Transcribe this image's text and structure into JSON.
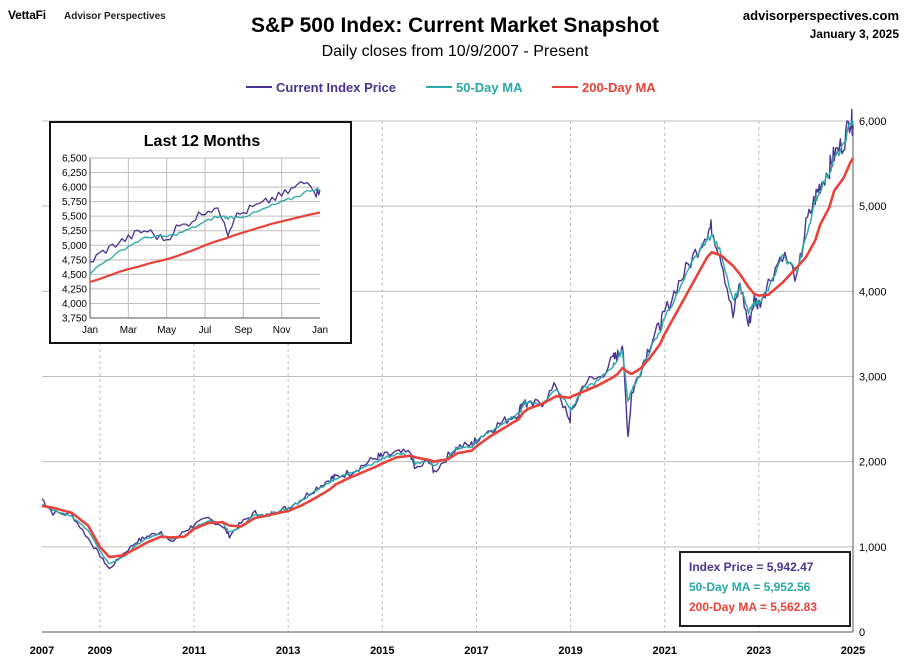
{
  "header": {
    "brand": "VettaFi",
    "brand_sub": "Advisor Perspectives",
    "title": "S&P 500 Index: Current Market Snapshot",
    "subtitle": "Daily closes from 10/9/2007 - Present",
    "site": "advisorperspectives.com",
    "date": "January 3, 2025"
  },
  "legend": [
    "Current Index Price",
    "50-Day MA",
    "200-Day MA"
  ],
  "colors": {
    "price": "#4b3391",
    "ma50": "#2aa7a7",
    "ma200": "#e8423a",
    "grid": "#bdbdbd"
  },
  "info": {
    "price_label": "Index Price =",
    "price_value": "5,942.47",
    "ma50_label": "50-Day MA =",
    "ma50_value": "5,952.56",
    "ma200_label": "200-Day  MA =",
    "ma200_value": "5,562.83"
  },
  "chart_data": [
    {
      "type": "line",
      "title": "S&P 500 Index: Current Market Snapshot",
      "subtitle": "Daily closes from 10/9/2007 - Present",
      "x_tick_labels": [
        "2007",
        "2009",
        "2011",
        "2013",
        "2015",
        "2017",
        "2019",
        "2021",
        "2023",
        "2025"
      ],
      "y_tick_labels": [
        "0",
        "1,000",
        "2,000",
        "3,000",
        "4,000",
        "5,000",
        "6,000"
      ],
      "xlim": [
        2007.77,
        2025.0
      ],
      "ylim": [
        0,
        6000
      ],
      "grid": true,
      "legend_position": "top-center",
      "x": [
        2007.77,
        2008.0,
        2008.4,
        2008.75,
        2009.0,
        2009.2,
        2009.5,
        2009.8,
        2010.0,
        2010.3,
        2010.5,
        2010.8,
        2011.0,
        2011.3,
        2011.6,
        2011.75,
        2012.0,
        2012.3,
        2012.5,
        2012.8,
        2013.0,
        2013.3,
        2013.6,
        2013.9,
        2014.0,
        2014.3,
        2014.6,
        2014.9,
        2015.0,
        2015.3,
        2015.6,
        2015.7,
        2016.0,
        2016.1,
        2016.4,
        2016.6,
        2016.9,
        2017.0,
        2017.3,
        2017.6,
        2017.9,
        2018.0,
        2018.1,
        2018.4,
        2018.7,
        2018.98,
        2019.0,
        2019.3,
        2019.6,
        2019.9,
        2020.0,
        2020.1,
        2020.22,
        2020.3,
        2020.5,
        2020.7,
        2020.9,
        2021.0,
        2021.3,
        2021.6,
        2021.9,
        2022.0,
        2022.2,
        2022.45,
        2022.6,
        2022.78,
        2022.9,
        2023.0,
        2023.2,
        2023.5,
        2023.82,
        2024.0,
        2024.2,
        2024.3,
        2024.5,
        2024.6,
        2024.8,
        2024.95,
        2025.0
      ],
      "series": [
        {
          "name": "Current Index Price",
          "values": [
            1565,
            1400,
            1380,
            1100,
            900,
            740,
            920,
            1070,
            1120,
            1180,
            1050,
            1180,
            1260,
            1330,
            1250,
            1130,
            1280,
            1400,
            1350,
            1430,
            1460,
            1570,
            1690,
            1800,
            1820,
            1870,
            1960,
            2060,
            2060,
            2100,
            2100,
            1900,
            2020,
            1880,
            2070,
            2170,
            2200,
            2260,
            2380,
            2480,
            2580,
            2720,
            2650,
            2700,
            2900,
            2450,
            2550,
            2940,
            2980,
            3200,
            3250,
            3380,
            2300,
            2800,
            3100,
            3400,
            3600,
            3750,
            4100,
            4400,
            4700,
            4750,
            4400,
            3700,
            4100,
            3600,
            3900,
            3850,
            4100,
            4450,
            4150,
            4770,
            5100,
            5250,
            5450,
            5600,
            5750,
            6050,
            5942
          ]
        },
        {
          "name": "50-Day MA",
          "values": [
            1500,
            1440,
            1350,
            1200,
            950,
            800,
            880,
            1030,
            1100,
            1150,
            1090,
            1130,
            1230,
            1310,
            1280,
            1170,
            1240,
            1380,
            1360,
            1420,
            1450,
            1550,
            1660,
            1770,
            1800,
            1860,
            1940,
            2000,
            2040,
            2090,
            2080,
            1980,
            2000,
            1950,
            2060,
            2160,
            2170,
            2240,
            2360,
            2460,
            2560,
            2680,
            2700,
            2680,
            2860,
            2650,
            2600,
            2870,
            2950,
            3130,
            3200,
            3320,
            2700,
            2850,
            3050,
            3330,
            3520,
            3700,
            4000,
            4350,
            4620,
            4650,
            4450,
            3900,
            4050,
            3750,
            3850,
            3880,
            4020,
            4400,
            4250,
            4650,
            5050,
            5200,
            5400,
            5560,
            5700,
            6000,
            5952
          ]
        },
        {
          "name": "200-Day MA",
          "values": [
            1480,
            1460,
            1400,
            1250,
            1000,
            880,
            900,
            990,
            1050,
            1120,
            1110,
            1120,
            1210,
            1280,
            1290,
            1250,
            1240,
            1340,
            1360,
            1400,
            1420,
            1490,
            1580,
            1680,
            1730,
            1810,
            1880,
            1950,
            1980,
            2050,
            2070,
            2050,
            2020,
            2000,
            2030,
            2100,
            2130,
            2180,
            2300,
            2400,
            2500,
            2580,
            2620,
            2680,
            2770,
            2750,
            2760,
            2830,
            2900,
            2990,
            3030,
            3100,
            3050,
            3030,
            3100,
            3230,
            3380,
            3500,
            3800,
            4100,
            4400,
            4460,
            4420,
            4300,
            4200,
            4050,
            3970,
            3950,
            3960,
            4100,
            4290,
            4400,
            4600,
            4780,
            4990,
            5180,
            5330,
            5520,
            5562
          ]
        }
      ]
    },
    {
      "type": "line",
      "title": "Last 12 Months",
      "x_tick_labels": [
        "Jan",
        "Mar",
        "May",
        "Jul",
        "Sep",
        "Nov",
        "Jan"
      ],
      "y_tick_labels": [
        "3,750",
        "4,000",
        "4,250",
        "4,500",
        "4,750",
        "5,000",
        "5,250",
        "5,500",
        "5,750",
        "6,000",
        "6,250",
        "6,500"
      ],
      "xlim": [
        0,
        12
      ],
      "ylim": [
        3750,
        6500
      ],
      "grid": true,
      "x": [
        0,
        0.5,
        1,
        1.5,
        2,
        2.5,
        3,
        3.5,
        4,
        4.5,
        5,
        5.5,
        6,
        6.5,
        7,
        7.2,
        7.5,
        8,
        8.5,
        9,
        9.5,
        10,
        10.5,
        11,
        11.5,
        11.8,
        12
      ],
      "series": [
        {
          "name": "Current Index Price",
          "values": [
            4700,
            4850,
            4950,
            5050,
            5120,
            5220,
            5250,
            5150,
            5100,
            5300,
            5350,
            5480,
            5600,
            5630,
            5450,
            5200,
            5470,
            5560,
            5650,
            5700,
            5800,
            5850,
            5950,
            6050,
            6090,
            5900,
            5942
          ]
        },
        {
          "name": "50-Day MA",
          "values": [
            4530,
            4650,
            4770,
            4880,
            4980,
            5070,
            5140,
            5150,
            5150,
            5190,
            5250,
            5320,
            5400,
            5480,
            5490,
            5470,
            5480,
            5500,
            5540,
            5610,
            5680,
            5740,
            5800,
            5870,
            5950,
            5960,
            5952
          ]
        },
        {
          "name": "200-Day MA",
          "values": [
            4370,
            4420,
            4480,
            4540,
            4590,
            4630,
            4680,
            4720,
            4760,
            4810,
            4870,
            4930,
            5000,
            5060,
            5110,
            5130,
            5170,
            5220,
            5270,
            5320,
            5370,
            5410,
            5450,
            5490,
            5530,
            5550,
            5562
          ]
        }
      ]
    }
  ]
}
